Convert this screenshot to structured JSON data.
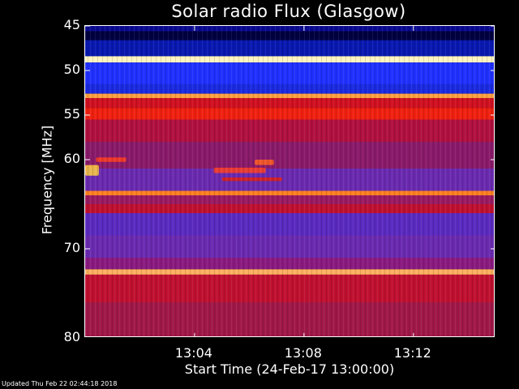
{
  "chart_data": {
    "type": "heatmap",
    "title": "Solar radio Flux (Glasgow)",
    "xlabel": "Start Time (24-Feb-17 13:00:00)",
    "ylabel": "Frequency [MHz]",
    "x_unit": "minutes after 13:00:00",
    "xlim": [
      0,
      15
    ],
    "ylim": [
      45,
      80
    ],
    "y_inverted": true,
    "xticks": [
      {
        "value": 4,
        "label": "13:04"
      },
      {
        "value": 8,
        "label": "13:08"
      },
      {
        "value": 12,
        "label": "13:12"
      }
    ],
    "yticks": [
      {
        "value": 45,
        "label": "45"
      },
      {
        "value": 50,
        "label": "50"
      },
      {
        "value": 55,
        "label": "55"
      },
      {
        "value": 60,
        "label": "60"
      },
      {
        "value": 70,
        "label": "70"
      },
      {
        "value": 80,
        "label": "80"
      }
    ],
    "colormap": [
      "#000020",
      "#0010a0",
      "#3030ff",
      "#6a2ad0",
      "#c01050",
      "#e00010",
      "#ff6000",
      "#ffd040",
      "#ffffff"
    ],
    "frequency_bands": [
      {
        "from": 45.0,
        "to": 45.6,
        "color": "#0a0a90"
      },
      {
        "from": 45.6,
        "to": 46.6,
        "color": "#000040"
      },
      {
        "from": 46.6,
        "to": 48.4,
        "color": "#0818b0"
      },
      {
        "from": 48.4,
        "to": 49.1,
        "color": "#fff4c0"
      },
      {
        "from": 49.1,
        "to": 51.5,
        "color": "#2030ff"
      },
      {
        "from": 51.5,
        "to": 52.6,
        "color": "#1a2ae0"
      },
      {
        "from": 52.6,
        "to": 53.1,
        "color": "#ffa040"
      },
      {
        "from": 53.1,
        "to": 54.2,
        "color": "#d01020"
      },
      {
        "from": 54.2,
        "to": 55.5,
        "color": "#f02010"
      },
      {
        "from": 55.5,
        "to": 58.0,
        "color": "#b01040"
      },
      {
        "from": 58.0,
        "to": 61.0,
        "color": "#8a1a6a"
      },
      {
        "from": 61.0,
        "to": 63.5,
        "color": "#6a2ab0"
      },
      {
        "from": 63.5,
        "to": 64.0,
        "color": "#ff8020"
      },
      {
        "from": 64.0,
        "to": 65.0,
        "color": "#9a1a60"
      },
      {
        "from": 65.0,
        "to": 66.0,
        "color": "#c01030"
      },
      {
        "from": 66.0,
        "to": 68.5,
        "color": "#5a2ac0"
      },
      {
        "from": 68.5,
        "to": 71.0,
        "color": "#6a2ab0"
      },
      {
        "from": 71.0,
        "to": 72.3,
        "color": "#8a1a80"
      },
      {
        "from": 72.3,
        "to": 72.9,
        "color": "#ffb060"
      },
      {
        "from": 72.9,
        "to": 76.0,
        "color": "#c01030"
      },
      {
        "from": 76.0,
        "to": 80.0,
        "color": "#a01848"
      }
    ],
    "events": [
      {
        "t_start": 0.0,
        "t_end": 0.5,
        "f": 61.2,
        "f_width": 1.2,
        "color": "#ffd040"
      },
      {
        "t_start": 0.4,
        "t_end": 1.5,
        "f": 60.0,
        "f_width": 0.5,
        "color": "#ff4020"
      },
      {
        "t_start": 4.7,
        "t_end": 6.6,
        "f": 61.2,
        "f_width": 0.6,
        "color": "#ff4020"
      },
      {
        "t_start": 6.2,
        "t_end": 6.9,
        "f": 60.3,
        "f_width": 0.6,
        "color": "#ff6020"
      },
      {
        "t_start": 5.0,
        "t_end": 7.2,
        "f": 62.2,
        "f_width": 0.4,
        "color": "#e02010"
      }
    ]
  },
  "footer": {
    "updated": "Updated Thu Feb 22 02:44:18 2018"
  }
}
